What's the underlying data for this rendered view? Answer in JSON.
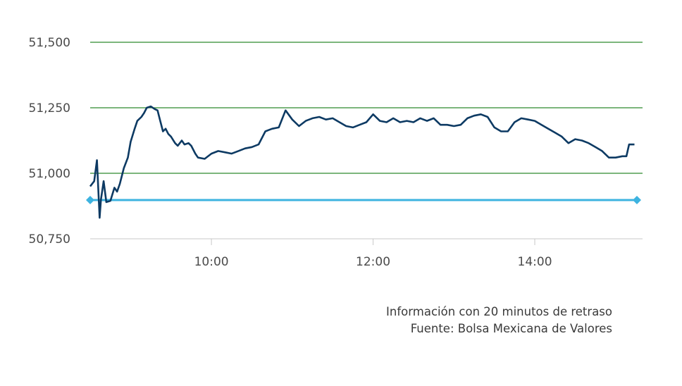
{
  "chart_data": {
    "type": "line",
    "title": "",
    "xlabel": "",
    "ylabel": "",
    "ylim": [
      50750,
      51500
    ],
    "yticks": [
      51500,
      51250,
      51000,
      50750
    ],
    "ytick_labels": [
      "51,500",
      "51,250",
      "51,000",
      "50,750"
    ],
    "xlim": [
      "08:30",
      "15:20"
    ],
    "xticks": [
      "10:00",
      "12:00",
      "14:00"
    ],
    "grid": true,
    "reference_line": {
      "value": 50898,
      "from": "08:30",
      "to": "15:20"
    },
    "colors": {
      "line": "#0d3a63",
      "grid": "#2e8b2e",
      "reference": "#3db3e0",
      "axis": "#c8c8c8"
    },
    "series": [
      {
        "x": [
          "08:30",
          "08:33",
          "08:35",
          "08:37",
          "08:38",
          "08:40",
          "08:42",
          "08:45",
          "08:48",
          "08:50",
          "08:52",
          "08:55",
          "08:58",
          "09:00",
          "09:03",
          "09:05",
          "09:08",
          "09:10",
          "09:12",
          "09:15",
          "09:18",
          "09:20",
          "09:22",
          "09:24",
          "09:26",
          "09:28",
          "09:30",
          "09:33",
          "09:35",
          "09:38",
          "09:40",
          "09:43",
          "09:45",
          "09:48",
          "09:50",
          "09:55",
          "10:00",
          "10:05",
          "10:10",
          "10:15",
          "10:20",
          "10:25",
          "10:30",
          "10:35",
          "10:40",
          "10:45",
          "10:50",
          "10:55",
          "11:00",
          "11:05",
          "11:10",
          "11:15",
          "11:20",
          "11:25",
          "11:30",
          "11:35",
          "11:40",
          "11:45",
          "11:50",
          "11:55",
          "12:00",
          "12:05",
          "12:10",
          "12:15",
          "12:20",
          "12:25",
          "12:30",
          "12:35",
          "12:40",
          "12:45",
          "12:50",
          "12:55",
          "13:00",
          "13:05",
          "13:10",
          "13:15",
          "13:20",
          "13:25",
          "13:30",
          "13:35",
          "13:40",
          "13:45",
          "13:50",
          "13:55",
          "14:00",
          "14:05",
          "14:10",
          "14:15",
          "14:20",
          "14:25",
          "14:30",
          "14:35",
          "14:40",
          "14:45",
          "14:50",
          "14:55",
          "15:00",
          "15:05",
          "15:08",
          "15:10",
          "15:12",
          "15:14"
        ],
        "values": [
          50950,
          50970,
          51050,
          50830,
          50900,
          50970,
          50890,
          50895,
          50945,
          50930,
          50960,
          51020,
          51060,
          51120,
          51170,
          51200,
          51215,
          51230,
          51250,
          51255,
          51245,
          51240,
          51200,
          51160,
          51170,
          51150,
          51140,
          51115,
          51105,
          51125,
          51110,
          51115,
          51105,
          51075,
          51060,
          51055,
          51075,
          51085,
          51080,
          51075,
          51085,
          51095,
          51100,
          51110,
          51160,
          51170,
          51175,
          51240,
          51205,
          51180,
          51200,
          51210,
          51215,
          51205,
          51210,
          51195,
          51180,
          51175,
          51185,
          51195,
          51225,
          51200,
          51195,
          51210,
          51195,
          51200,
          51195,
          51210,
          51200,
          51210,
          51185,
          51185,
          51180,
          51185,
          51210,
          51220,
          51225,
          51215,
          51175,
          51160,
          51160,
          51195,
          51210,
          51205,
          51200,
          51185,
          51170,
          51155,
          51140,
          51115,
          51130,
          51125,
          51115,
          51100,
          51085,
          51060,
          51060,
          51065,
          51065,
          51110,
          51110,
          51110
        ]
      }
    ]
  },
  "footnote": {
    "line1": "Información con 20 minutos de retraso",
    "line2": "Fuente: Bolsa Mexicana de Valores"
  }
}
